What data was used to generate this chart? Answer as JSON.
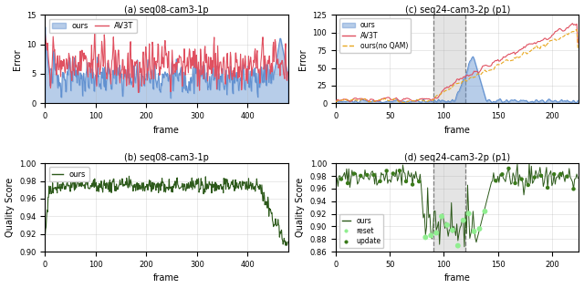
{
  "fig_width": 6.4,
  "fig_height": 3.16,
  "dpi": 100,
  "subplot_a": {
    "caption": "(a) seq08-cam3-1p",
    "xlabel": "frame",
    "ylabel": "Error",
    "xlim": [
      0,
      480
    ],
    "ylim": [
      0,
      15
    ],
    "yticks": [
      0,
      5,
      10,
      15
    ],
    "xticks": [
      0,
      100,
      200,
      300,
      400
    ],
    "n_frames": 480,
    "ours_color": "#6090d0",
    "av3t_color": "#e05060",
    "fill_alpha": 0.45,
    "legend_ours": "ours",
    "legend_av3t": "AV3T"
  },
  "subplot_b": {
    "caption": "(b) seq08-cam3-1p",
    "xlabel": "frame",
    "ylabel": "Quality Score",
    "xlim": [
      0,
      480
    ],
    "ylim": [
      0.9,
      1.0
    ],
    "yticks": [
      0.9,
      0.92,
      0.94,
      0.96,
      0.98,
      1.0
    ],
    "xticks": [
      0,
      100,
      200,
      300,
      400
    ],
    "n_frames": 480,
    "ours_color": "#2d5a1b",
    "legend_ours": "ours"
  },
  "subplot_c": {
    "caption": "(c) seq24-cam3-2p (p1)",
    "xlabel": "frame",
    "ylabel": "Error",
    "xlim": [
      0,
      225
    ],
    "ylim": [
      0,
      125
    ],
    "yticks": [
      0,
      25,
      50,
      75,
      100,
      125
    ],
    "xticks": [
      0,
      50,
      100,
      150,
      200
    ],
    "n_frames": 225,
    "ours_color": "#6090d0",
    "av3t_color": "#e05060",
    "noqam_color": "#e8a820",
    "fill_alpha": 0.45,
    "vline1": 90,
    "vline2": 120,
    "legend_ours": "ours",
    "legend_av3t": "AV3T",
    "legend_noqam": "ours(no QAM)"
  },
  "subplot_d": {
    "caption": "(d) seq24-cam3-2p (p1)",
    "xlabel": "frame",
    "ylabel": "Quality Score",
    "xlim": [
      0,
      225
    ],
    "ylim": [
      0.86,
      1.0
    ],
    "yticks": [
      0.86,
      0.88,
      0.9,
      0.92,
      0.94,
      0.96,
      0.98,
      1.0
    ],
    "xticks": [
      0,
      50,
      100,
      150,
      200
    ],
    "n_frames": 225,
    "ours_color": "#2d5a1b",
    "reset_color": "#90ee90",
    "update_color": "#3a7a1a",
    "vline1": 90,
    "vline2": 120,
    "legend_ours": "ours",
    "legend_reset": "reset",
    "legend_update": "update"
  }
}
